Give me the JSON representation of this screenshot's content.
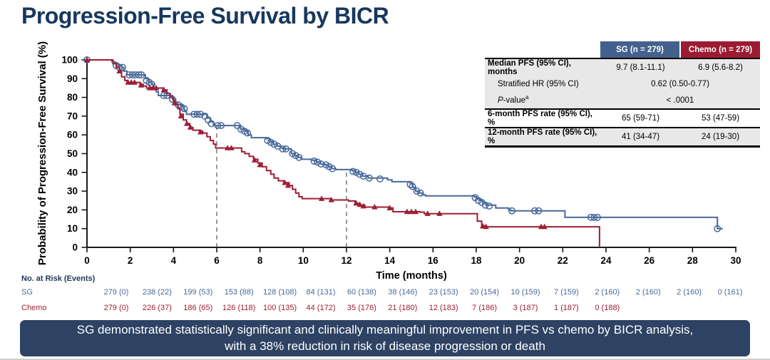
{
  "slide": {
    "title": "Progression-Free Survival by BICR",
    "banner": {
      "line1": "SG demonstrated statistically significant and clinically meaningful improvement in PFS vs chemo by BICR analysis,",
      "line2": "with a 38% reduction in risk of disease progression or death"
    }
  },
  "colors": {
    "sg": "#48699a",
    "chemo": "#9e1f35",
    "sg_header_bg": "#44618d",
    "chemo_header_bg": "#9c1b33",
    "title_navy": "#17375e",
    "banner_bg": "#2e4263",
    "reference_gray": "#808080",
    "axis_black": "#1a1a1a",
    "table_row_gray": "#e8e8e8"
  },
  "stats_table": {
    "col_headers": [
      "SG (n = 279)",
      "Chemo (n = 279)"
    ],
    "rows": [
      {
        "label": "Median PFS (95% CI), months",
        "sg": "9.7 (8.1-11.1)",
        "chemo": "6.9 (5.6-8.2)"
      },
      {
        "label": "Stratified HR (95% CI)",
        "merged": "0.62 (0.50-0.77)"
      },
      {
        "label_italic": "P",
        "label": "-value",
        "label_superscript": "a",
        "merged": "< .0001"
      },
      {
        "label": "6-month PFS rate (95% CI), %",
        "sg": "65 (59-71)",
        "chemo": "53 (47-59)"
      },
      {
        "label": "12-month PFS rate (95% CI), %",
        "sg": "41 (34-47)",
        "chemo": "24 (19-30)"
      }
    ]
  },
  "chart_data": {
    "type": "line",
    "subtype": "kaplan-meier-step",
    "title": "Progression-Free Survival by BICR",
    "xlabel": "Time (months)",
    "ylabel": "Probability of Progression-Free Survival (%)",
    "xlim": [
      0,
      30
    ],
    "ylim": [
      0,
      100
    ],
    "x_ticks": [
      0,
      2,
      4,
      6,
      8,
      10,
      12,
      14,
      16,
      18,
      20,
      22,
      24,
      26,
      28,
      30
    ],
    "y_ticks": [
      0,
      10,
      20,
      30,
      40,
      50,
      60,
      70,
      80,
      90,
      100
    ],
    "grid": false,
    "legend_position": "none",
    "reference_lines": [
      {
        "x": 6,
        "y_top": 65,
        "style": "dashed"
      },
      {
        "x": 12,
        "y_top": 41,
        "style": "dashed"
      }
    ],
    "series": [
      {
        "name": "SG",
        "marker": "open-circle",
        "steps": [
          [
            0,
            100
          ],
          [
            1.05,
            100
          ],
          [
            1.15,
            99
          ],
          [
            1.3,
            98
          ],
          [
            1.45,
            97
          ],
          [
            1.6,
            96
          ],
          [
            1.7,
            94
          ],
          [
            1.85,
            92
          ],
          [
            2.6,
            92
          ],
          [
            2.7,
            90
          ],
          [
            2.85,
            88
          ],
          [
            3.0,
            87
          ],
          [
            3.1,
            85
          ],
          [
            3.2,
            83
          ],
          [
            3.3,
            81
          ],
          [
            3.8,
            81
          ],
          [
            3.95,
            79
          ],
          [
            4.1,
            77
          ],
          [
            4.2,
            76
          ],
          [
            4.4,
            75
          ],
          [
            4.5,
            73
          ],
          [
            4.6,
            71
          ],
          [
            5.4,
            71
          ],
          [
            5.55,
            69
          ],
          [
            5.7,
            67
          ],
          [
            5.85,
            65
          ],
          [
            7.0,
            65
          ],
          [
            7.1,
            63
          ],
          [
            7.3,
            62
          ],
          [
            7.45,
            60
          ],
          [
            7.6,
            58.5
          ],
          [
            8.3,
            58
          ],
          [
            8.45,
            56.5
          ],
          [
            8.6,
            55
          ],
          [
            8.8,
            54
          ],
          [
            8.95,
            53
          ],
          [
            9.1,
            52.5
          ],
          [
            9.45,
            50
          ],
          [
            9.6,
            49
          ],
          [
            9.75,
            48
          ],
          [
            9.9,
            47
          ],
          [
            10.4,
            46.5
          ],
          [
            10.6,
            45.5
          ],
          [
            10.8,
            44.5
          ],
          [
            11.0,
            44
          ],
          [
            11.15,
            43
          ],
          [
            11.3,
            42
          ],
          [
            11.5,
            41.5
          ],
          [
            12.25,
            41
          ],
          [
            12.4,
            40
          ],
          [
            12.55,
            39
          ],
          [
            12.75,
            38
          ],
          [
            13.0,
            37
          ],
          [
            13.9,
            36
          ],
          [
            14.1,
            35
          ],
          [
            14.95,
            34
          ],
          [
            15.05,
            32
          ],
          [
            15.2,
            30
          ],
          [
            15.35,
            29
          ],
          [
            15.5,
            28
          ],
          [
            15.65,
            27.5
          ],
          [
            17.9,
            27
          ],
          [
            18.0,
            26
          ],
          [
            18.15,
            25
          ],
          [
            18.3,
            24
          ],
          [
            18.45,
            22.5
          ],
          [
            18.9,
            21
          ],
          [
            19.5,
            20
          ],
          [
            19.6,
            19.5
          ],
          [
            22.0,
            19.5
          ],
          [
            22.1,
            16
          ],
          [
            29.0,
            16
          ],
          [
            29.15,
            10
          ],
          [
            29.4,
            10
          ]
        ],
        "censor_marks": [
          [
            0,
            100
          ],
          [
            1.35,
            97
          ],
          [
            1.5,
            96
          ],
          [
            1.65,
            96
          ],
          [
            1.95,
            92
          ],
          [
            2.1,
            92
          ],
          [
            2.25,
            92
          ],
          [
            2.4,
            92
          ],
          [
            2.52,
            92
          ],
          [
            2.75,
            89
          ],
          [
            2.88,
            88
          ],
          [
            3.0,
            87
          ],
          [
            3.55,
            81
          ],
          [
            3.7,
            81
          ],
          [
            3.95,
            79
          ],
          [
            4.22,
            76
          ],
          [
            4.35,
            75
          ],
          [
            4.5,
            74
          ],
          [
            4.95,
            71
          ],
          [
            5.1,
            71
          ],
          [
            5.25,
            71
          ],
          [
            5.45,
            70
          ],
          [
            5.6,
            68
          ],
          [
            5.75,
            66
          ],
          [
            6.05,
            65
          ],
          [
            6.2,
            65
          ],
          [
            6.95,
            65
          ],
          [
            7.12,
            63
          ],
          [
            7.28,
            62
          ],
          [
            7.42,
            61
          ],
          [
            8.35,
            57
          ],
          [
            8.5,
            56
          ],
          [
            8.65,
            55
          ],
          [
            8.82,
            54
          ],
          [
            9.05,
            52.5
          ],
          [
            9.2,
            52.5
          ],
          [
            9.5,
            50
          ],
          [
            9.65,
            49
          ],
          [
            9.8,
            48
          ],
          [
            10.5,
            46
          ],
          [
            10.65,
            45.5
          ],
          [
            10.82,
            44.5
          ],
          [
            11.05,
            44
          ],
          [
            11.2,
            43
          ],
          [
            11.35,
            42
          ],
          [
            12.3,
            40.5
          ],
          [
            12.45,
            40
          ],
          [
            12.6,
            39
          ],
          [
            12.78,
            38
          ],
          [
            13.05,
            37
          ],
          [
            13.55,
            36.5
          ],
          [
            14.95,
            33.5
          ],
          [
            15.05,
            32.5
          ],
          [
            15.25,
            30
          ],
          [
            15.42,
            29
          ],
          [
            17.95,
            26.5
          ],
          [
            18.1,
            25
          ],
          [
            18.25,
            24
          ],
          [
            18.42,
            22.5
          ],
          [
            18.6,
            22
          ],
          [
            19.65,
            19.5
          ],
          [
            20.7,
            19.5
          ],
          [
            20.88,
            19.5
          ],
          [
            23.3,
            16
          ],
          [
            23.45,
            16
          ],
          [
            23.6,
            16
          ],
          [
            29.15,
            10
          ]
        ]
      },
      {
        "name": "Chemo",
        "marker": "filled-triangle",
        "steps": [
          [
            0,
            100
          ],
          [
            1.1,
            100
          ],
          [
            1.2,
            98
          ],
          [
            1.35,
            96
          ],
          [
            1.5,
            94
          ],
          [
            1.6,
            91
          ],
          [
            1.75,
            89
          ],
          [
            1.85,
            88
          ],
          [
            2.3,
            88
          ],
          [
            2.45,
            87
          ],
          [
            2.6,
            86
          ],
          [
            2.75,
            85
          ],
          [
            3.4,
            85
          ],
          [
            3.55,
            84
          ],
          [
            3.7,
            82
          ],
          [
            3.85,
            80
          ],
          [
            4.0,
            78
          ],
          [
            4.1,
            76
          ],
          [
            4.2,
            74
          ],
          [
            4.3,
            71
          ],
          [
            4.45,
            68
          ],
          [
            4.6,
            66
          ],
          [
            4.75,
            64
          ],
          [
            4.9,
            62.5
          ],
          [
            5.2,
            62
          ],
          [
            5.35,
            61
          ],
          [
            5.55,
            59
          ],
          [
            5.7,
            57
          ],
          [
            5.85,
            55
          ],
          [
            5.95,
            53
          ],
          [
            7.05,
            53
          ],
          [
            7.15,
            51
          ],
          [
            7.3,
            50
          ],
          [
            7.5,
            48.5
          ],
          [
            7.7,
            47
          ],
          [
            7.9,
            45
          ],
          [
            8.1,
            43
          ],
          [
            8.3,
            41
          ],
          [
            8.5,
            39
          ],
          [
            8.65,
            37
          ],
          [
            8.85,
            35.5
          ],
          [
            9.1,
            34.5
          ],
          [
            9.35,
            33
          ],
          [
            9.5,
            31
          ],
          [
            9.65,
            29
          ],
          [
            9.8,
            27
          ],
          [
            9.95,
            26
          ],
          [
            11.1,
            26
          ],
          [
            11.25,
            25.3
          ],
          [
            12.1,
            24.7
          ],
          [
            12.4,
            23.5
          ],
          [
            12.6,
            22.5
          ],
          [
            12.85,
            21.5
          ],
          [
            14.0,
            21
          ],
          [
            14.15,
            19
          ],
          [
            15.4,
            18.8
          ],
          [
            15.6,
            18
          ],
          [
            17.95,
            18
          ],
          [
            18.05,
            14
          ],
          [
            18.25,
            11.5
          ],
          [
            18.4,
            11
          ],
          [
            23.65,
            11
          ],
          [
            23.7,
            0
          ]
        ],
        "censor_marks": [
          [
            0,
            100
          ],
          [
            1.5,
            94
          ],
          [
            1.9,
            88
          ],
          [
            2.05,
            88
          ],
          [
            2.2,
            88
          ],
          [
            2.5,
            86.5
          ],
          [
            2.9,
            85
          ],
          [
            3.05,
            85
          ],
          [
            3.2,
            85
          ],
          [
            3.55,
            84
          ],
          [
            4.05,
            77
          ],
          [
            4.35,
            70
          ],
          [
            4.62,
            66
          ],
          [
            4.78,
            64
          ],
          [
            5.25,
            61.5
          ],
          [
            6.5,
            53
          ],
          [
            6.68,
            53
          ],
          [
            7.75,
            46.5
          ],
          [
            8.0,
            44
          ],
          [
            9.15,
            34.5
          ],
          [
            9.3,
            33
          ],
          [
            10.85,
            26
          ],
          [
            11.3,
            25.3
          ],
          [
            12.45,
            23.5
          ],
          [
            12.62,
            22.8
          ],
          [
            12.78,
            22
          ],
          [
            13.3,
            21.5
          ],
          [
            14.0,
            21
          ],
          [
            14.8,
            19
          ],
          [
            15.0,
            19
          ],
          [
            15.2,
            19
          ],
          [
            15.75,
            18
          ],
          [
            16.3,
            18
          ],
          [
            18.3,
            11.3
          ],
          [
            18.45,
            11
          ],
          [
            21.0,
            11
          ],
          [
            21.15,
            11
          ]
        ]
      }
    ]
  },
  "risk_table": {
    "title": "No. at Risk (Events)",
    "rows": [
      {
        "name": "SG",
        "values": [
          "279 (0)",
          "238 (22)",
          "199 (53)",
          "153 (88)",
          "128 (108)",
          "84 (131)",
          "60 (138)",
          "38 (146)",
          "23 (153)",
          "20 (154)",
          "10 (159)",
          "7 (159)",
          "2 (160)",
          "2 (160)",
          "2 (160)",
          "0 (161)"
        ]
      },
      {
        "name": "Chemo",
        "values": [
          "279 (0)",
          "226 (37)",
          "186 (65)",
          "126 (118)",
          "100 (135)",
          "44 (172)",
          "35 (176)",
          "21 (180)",
          "12 (183)",
          "7 (186)",
          "3 (187)",
          "1 (187)",
          "0 (188)"
        ]
      }
    ]
  }
}
